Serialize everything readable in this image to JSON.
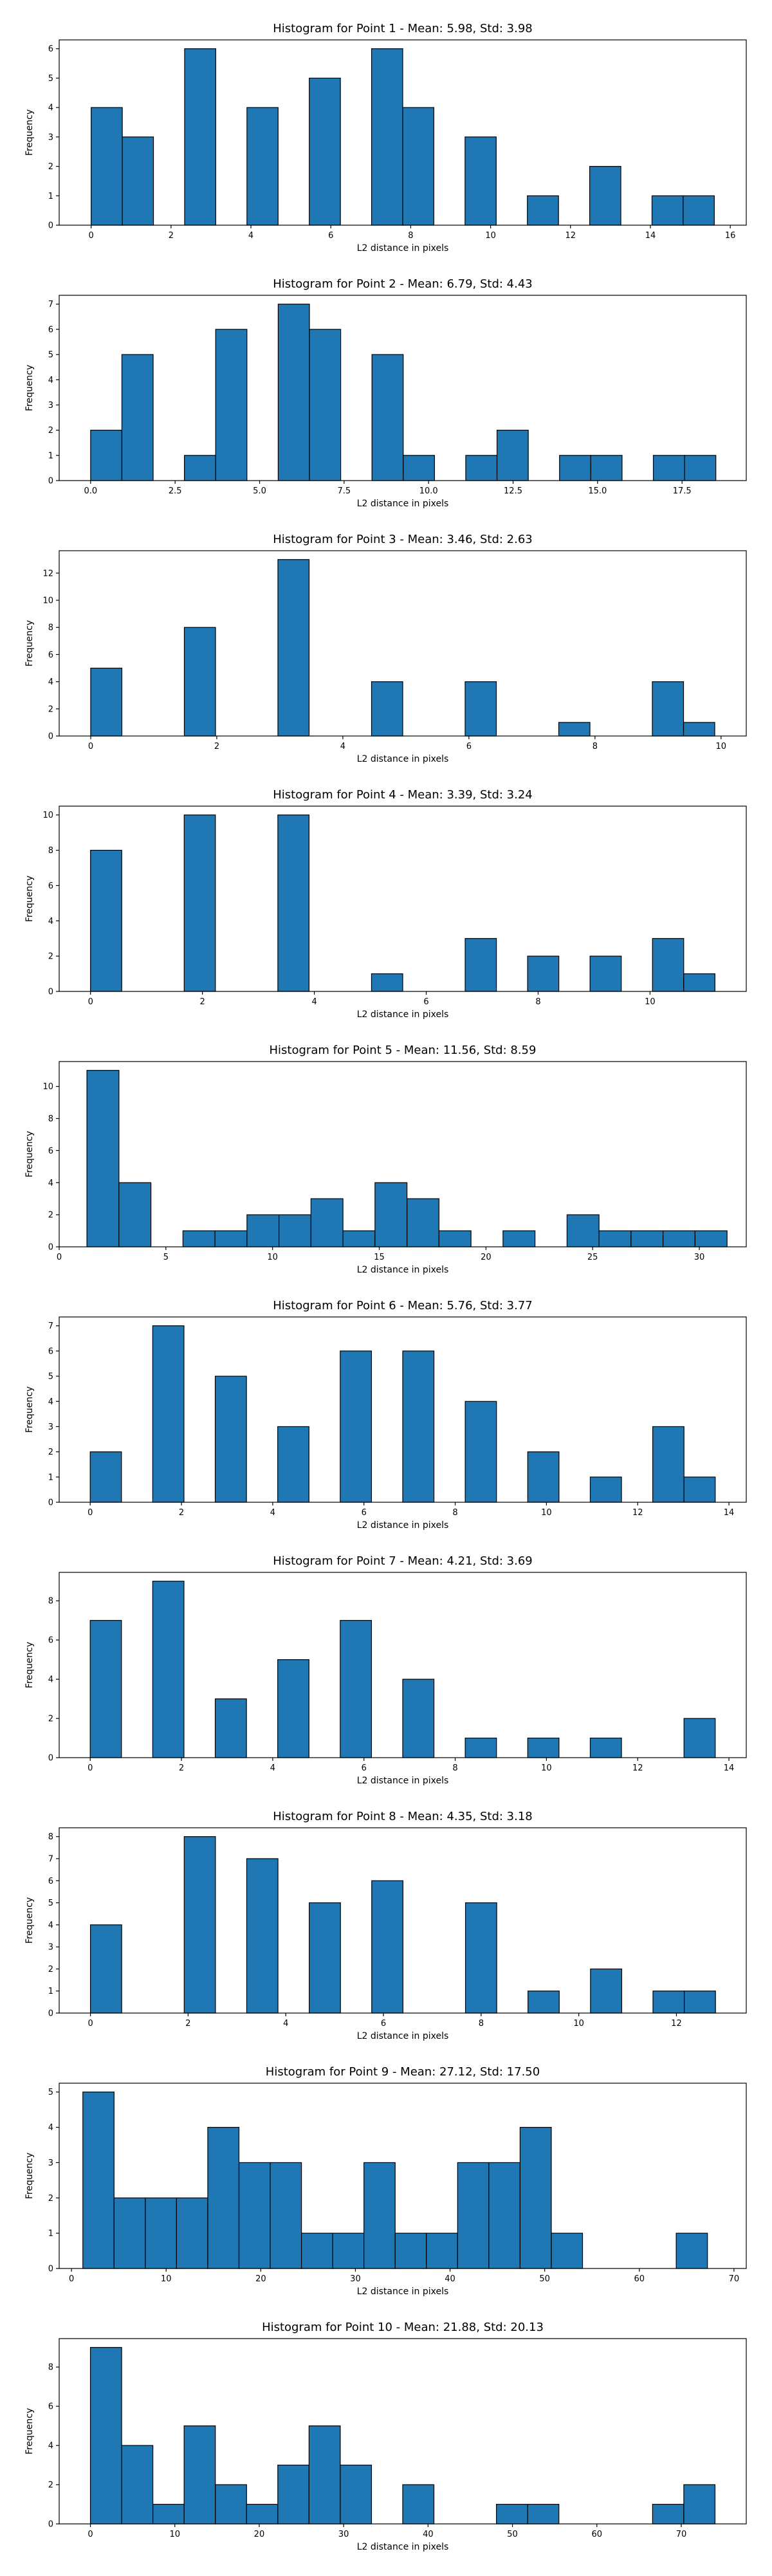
{
  "chart_data": [
    {
      "type": "bar",
      "title": "Histogram for Point 1 - Mean: 5.98, Std: 3.98",
      "xlabel": "L2 distance in pixels",
      "ylabel": "Frequency",
      "xlim": [
        -0.8,
        16.4
      ],
      "ylim": [
        0,
        6.3
      ],
      "xticks": [
        0,
        2,
        4,
        6,
        8,
        10,
        12,
        14,
        16
      ],
      "xtick_labels": [
        "0",
        "2",
        "4",
        "6",
        "8",
        "10",
        "12",
        "14",
        "16"
      ],
      "yticks": [
        0,
        1,
        2,
        3,
        4,
        5,
        6
      ],
      "ytick_labels": [
        "0",
        "1",
        "2",
        "3",
        "4",
        "5",
        "6"
      ],
      "bin_start": 0.0,
      "bin_width": 0.78,
      "counts": [
        4,
        3,
        0,
        6,
        0,
        4,
        0,
        5,
        0,
        6,
        4,
        0,
        3,
        0,
        1,
        0,
        2,
        0,
        1,
        1
      ]
    },
    {
      "type": "bar",
      "title": "Histogram for Point 2 - Mean: 6.79, Std: 4.43",
      "xlabel": "L2 distance in pixels",
      "ylabel": "Frequency",
      "xlim": [
        -0.93,
        19.4
      ],
      "ylim": [
        0,
        7.35
      ],
      "xticks": [
        0,
        2.5,
        5,
        7.5,
        10,
        12.5,
        15,
        17.5
      ],
      "xtick_labels": [
        "0.0",
        "2.5",
        "5.0",
        "7.5",
        "10.0",
        "12.5",
        "15.0",
        "17.5"
      ],
      "yticks": [
        0,
        1,
        2,
        3,
        4,
        5,
        6,
        7
      ],
      "ytick_labels": [
        "0",
        "1",
        "2",
        "3",
        "4",
        "5",
        "6",
        "7"
      ],
      "bin_start": 0.0,
      "bin_width": 0.925,
      "counts": [
        2,
        5,
        0,
        1,
        6,
        0,
        7,
        6,
        0,
        5,
        1,
        0,
        1,
        2,
        0,
        1,
        1,
        0,
        1,
        1
      ]
    },
    {
      "type": "bar",
      "title": "Histogram for Point 3 - Mean: 3.46, Std: 2.63",
      "xlabel": "L2 distance in pixels",
      "ylabel": "Frequency",
      "xlim": [
        -0.5,
        10.4
      ],
      "ylim": [
        0,
        13.65
      ],
      "xticks": [
        0,
        2,
        4,
        6,
        8,
        10
      ],
      "xtick_labels": [
        "0",
        "2",
        "4",
        "6",
        "8",
        "10"
      ],
      "yticks": [
        0,
        2,
        4,
        6,
        8,
        10,
        12
      ],
      "ytick_labels": [
        "0",
        "2",
        "4",
        "6",
        "8",
        "10",
        "12"
      ],
      "bin_start": 0.0,
      "bin_width": 0.495,
      "counts": [
        5,
        0,
        0,
        8,
        0,
        0,
        13,
        0,
        0,
        4,
        0,
        0,
        4,
        0,
        0,
        1,
        0,
        0,
        4,
        1
      ]
    },
    {
      "type": "bar",
      "title": "Histogram for Point 4 - Mean: 3.39, Std: 3.24",
      "xlabel": "L2 distance in pixels",
      "ylabel": "Frequency",
      "xlim": [
        -0.56,
        11.72
      ],
      "ylim": [
        0,
        10.5
      ],
      "xticks": [
        0,
        2,
        4,
        6,
        8,
        10
      ],
      "xtick_labels": [
        "0",
        "2",
        "4",
        "6",
        "8",
        "10"
      ],
      "yticks": [
        0,
        2,
        4,
        6,
        8,
        10
      ],
      "ytick_labels": [
        "0",
        "2",
        "4",
        "6",
        "8",
        "10"
      ],
      "bin_start": 0.0,
      "bin_width": 0.558,
      "counts": [
        8,
        0,
        0,
        10,
        0,
        0,
        10,
        0,
        0,
        1,
        0,
        0,
        3,
        0,
        2,
        0,
        2,
        0,
        3,
        1
      ]
    },
    {
      "type": "bar",
      "title": "Histogram for Point 5 - Mean: 11.56, Std: 8.59",
      "xlabel": "L2 distance in pixels",
      "ylabel": "Frequency",
      "xlim": [
        0,
        32.2
      ],
      "ylim": [
        0,
        11.55
      ],
      "xticks": [
        0,
        5,
        10,
        15,
        20,
        25,
        30
      ],
      "xtick_labels": [
        "0",
        "5",
        "10",
        "15",
        "20",
        "25",
        "30"
      ],
      "yticks": [
        0,
        2,
        4,
        6,
        8,
        10
      ],
      "ytick_labels": [
        "0",
        "2",
        "4",
        "6",
        "8",
        "10"
      ],
      "bin_start": 1.3,
      "bin_width": 1.5,
      "counts": [
        11,
        4,
        0,
        1,
        1,
        2,
        2,
        3,
        1,
        4,
        3,
        1,
        0,
        1,
        0,
        2,
        1,
        1,
        1,
        1
      ]
    },
    {
      "type": "bar",
      "title": "Histogram for Point 6 - Mean: 5.76, Std: 3.77",
      "xlabel": "L2 distance in pixels",
      "ylabel": "Frequency",
      "xlim": [
        -0.68,
        14.38
      ],
      "ylim": [
        0,
        7.35
      ],
      "xticks": [
        0,
        2,
        4,
        6,
        8,
        10,
        12,
        14
      ],
      "xtick_labels": [
        "0",
        "2",
        "4",
        "6",
        "8",
        "10",
        "12",
        "14"
      ],
      "yticks": [
        0,
        1,
        2,
        3,
        4,
        5,
        6,
        7
      ],
      "ytick_labels": [
        "0",
        "1",
        "2",
        "3",
        "4",
        "5",
        "6",
        "7"
      ],
      "bin_start": 0.0,
      "bin_width": 0.685,
      "counts": [
        2,
        0,
        7,
        0,
        5,
        0,
        3,
        0,
        6,
        0,
        6,
        0,
        4,
        0,
        2,
        0,
        1,
        0,
        3,
        1
      ]
    },
    {
      "type": "bar",
      "title": "Histogram for Point 7 - Mean: 4.21, Std: 3.69",
      "xlabel": "L2 distance in pixels",
      "ylabel": "Frequency",
      "xlim": [
        -0.68,
        14.38
      ],
      "ylim": [
        0,
        9.45
      ],
      "xticks": [
        0,
        2,
        4,
        6,
        8,
        10,
        12,
        14
      ],
      "xtick_labels": [
        "0",
        "2",
        "4",
        "6",
        "8",
        "10",
        "12",
        "14"
      ],
      "yticks": [
        0,
        2,
        4,
        6,
        8
      ],
      "ytick_labels": [
        "0",
        "2",
        "4",
        "6",
        "8"
      ],
      "bin_start": 0.0,
      "bin_width": 0.685,
      "counts": [
        7,
        0,
        9,
        0,
        3,
        0,
        5,
        0,
        7,
        0,
        4,
        0,
        1,
        0,
        1,
        0,
        1,
        0,
        0,
        2
      ]
    },
    {
      "type": "bar",
      "title": "Histogram for Point 8 - Mean: 4.35, Std: 3.18",
      "xlabel": "L2 distance in pixels",
      "ylabel": "Frequency",
      "xlim": [
        -0.64,
        13.43
      ],
      "ylim": [
        0,
        8.4
      ],
      "xticks": [
        0,
        2,
        4,
        6,
        8,
        10,
        12
      ],
      "xtick_labels": [
        "0",
        "2",
        "4",
        "6",
        "8",
        "10",
        "12"
      ],
      "yticks": [
        0,
        1,
        2,
        3,
        4,
        5,
        6,
        7,
        8
      ],
      "ytick_labels": [
        "0",
        "1",
        "2",
        "3",
        "4",
        "5",
        "6",
        "7",
        "8"
      ],
      "bin_start": 0.0,
      "bin_width": 0.64,
      "counts": [
        4,
        0,
        0,
        8,
        0,
        7,
        0,
        5,
        0,
        6,
        0,
        0,
        5,
        0,
        1,
        0,
        2,
        0,
        1,
        1
      ]
    },
    {
      "type": "bar",
      "title": "Histogram for Point 9 - Mean: 27.12, Std: 17.50",
      "xlabel": "L2 distance in pixels",
      "ylabel": "Frequency",
      "xlim": [
        -1.3,
        71.3
      ],
      "ylim": [
        0,
        5.25
      ],
      "xticks": [
        0,
        10,
        20,
        30,
        40,
        50,
        60,
        70
      ],
      "xtick_labels": [
        "0",
        "10",
        "20",
        "30",
        "40",
        "50",
        "60",
        "70"
      ],
      "yticks": [
        0,
        1,
        2,
        3,
        4,
        5
      ],
      "ytick_labels": [
        "0",
        "1",
        "2",
        "3",
        "4",
        "5"
      ],
      "bin_start": 1.2,
      "bin_width": 3.3,
      "counts": [
        5,
        2,
        2,
        2,
        4,
        3,
        3,
        1,
        1,
        3,
        1,
        1,
        3,
        3,
        4,
        1,
        0,
        0,
        0,
        1
      ]
    },
    {
      "type": "bar",
      "title": "Histogram for Point 10 - Mean: 21.88, Std: 20.13",
      "xlabel": "L2 distance in pixels",
      "ylabel": "Frequency",
      "xlim": [
        -3.7,
        77.7
      ],
      "ylim": [
        0,
        9.45
      ],
      "xticks": [
        0,
        10,
        20,
        30,
        40,
        50,
        60,
        70
      ],
      "xtick_labels": [
        "0",
        "10",
        "20",
        "30",
        "40",
        "50",
        "60",
        "70"
      ],
      "yticks": [
        0,
        2,
        4,
        6,
        8
      ],
      "ytick_labels": [
        "0",
        "2",
        "4",
        "6",
        "8"
      ],
      "bin_start": 0.0,
      "bin_width": 3.7,
      "counts": [
        9,
        4,
        1,
        5,
        2,
        1,
        3,
        5,
        3,
        0,
        2,
        0,
        0,
        1,
        1,
        0,
        0,
        0,
        1,
        2
      ]
    }
  ]
}
